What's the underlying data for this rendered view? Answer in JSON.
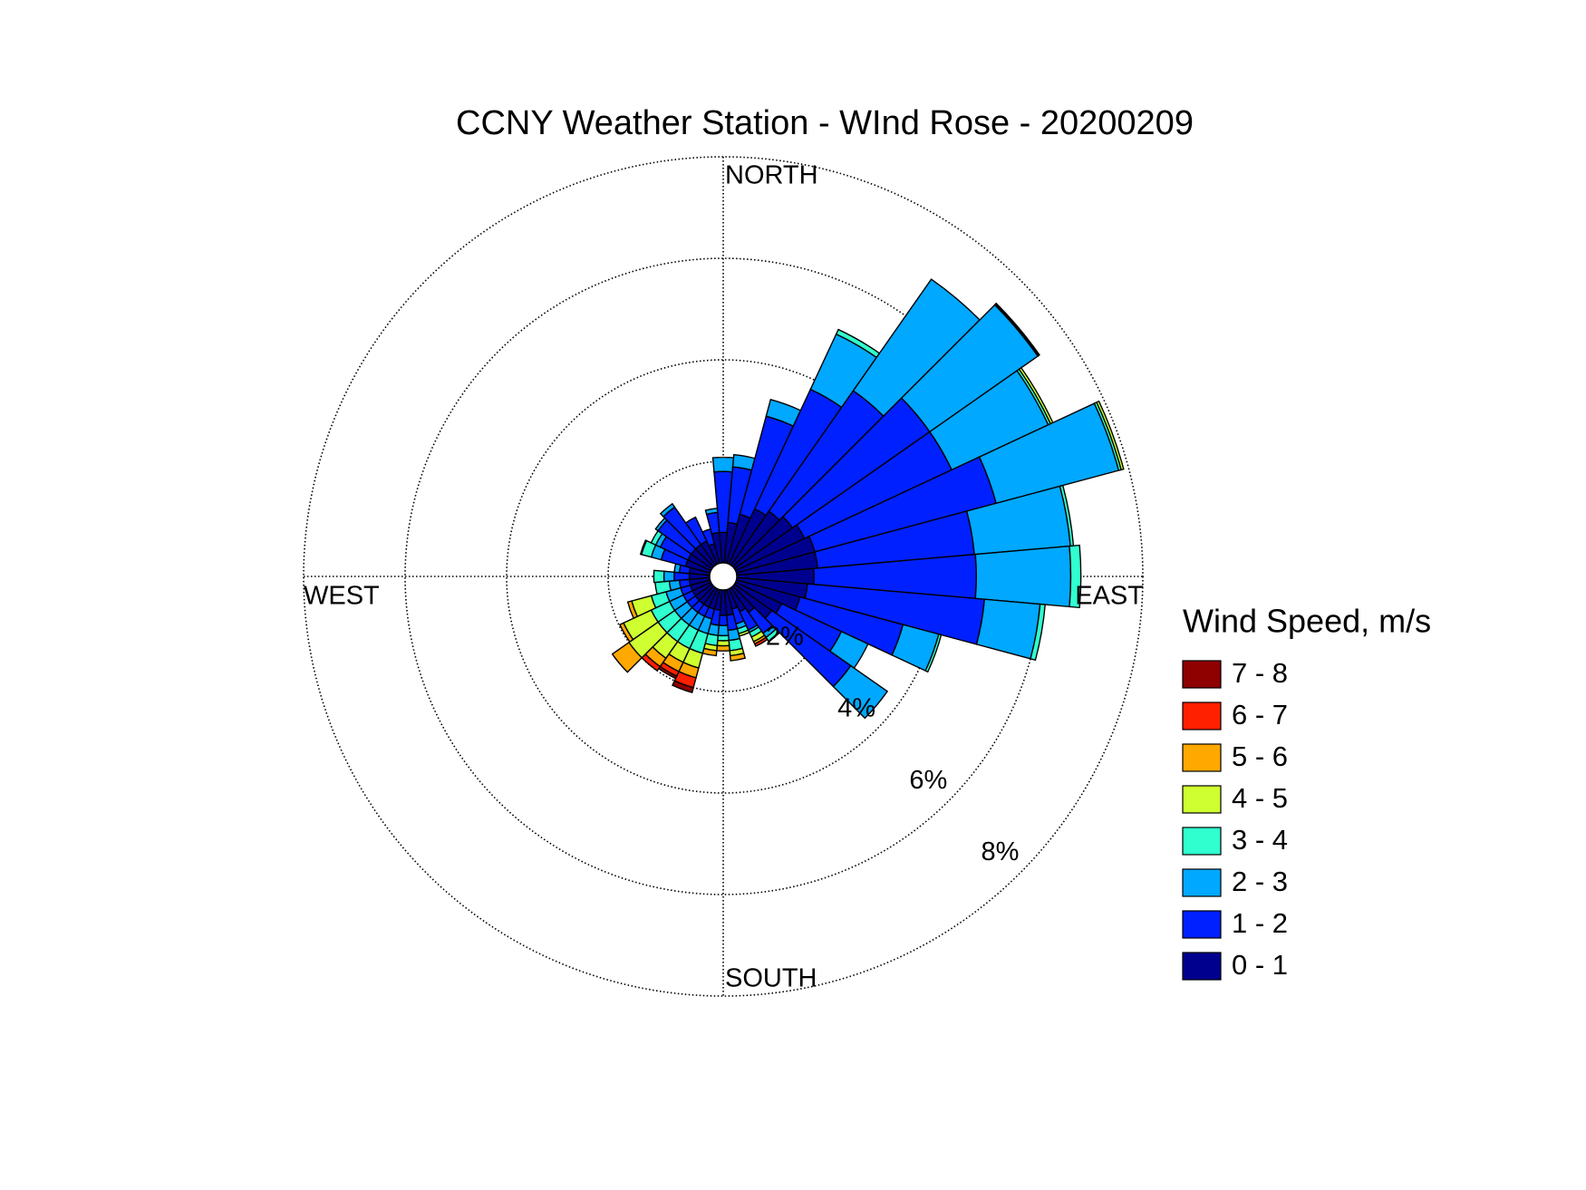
{
  "chart_data": {
    "type": "windrose",
    "title": "CCNY Weather Station - WInd Rose - 20200209",
    "categories": [
      "NORTH",
      null,
      null,
      null,
      null,
      null,
      null,
      null,
      null,
      "EAST",
      null,
      null,
      null,
      null,
      null,
      null,
      null,
      null,
      "SOUTH",
      null,
      null,
      null,
      null,
      null,
      null,
      null,
      null,
      "WEST",
      null,
      null,
      null,
      null,
      null,
      null,
      null,
      null
    ],
    "rlim": [
      0,
      8
    ],
    "rticks": [
      {
        "value": 2,
        "label": "2%"
      },
      {
        "value": 4,
        "label": "4%"
      },
      {
        "value": 6,
        "label": "6%"
      },
      {
        "value": 8,
        "label": "8%"
      }
    ],
    "grid": true,
    "legend_title": "Wind Speed, m/s",
    "legend_position": "right",
    "series": [
      {
        "name": "0 - 1",
        "color": "#00008f",
        "values": [
          0.6,
          0.8,
          1.0,
          1.2,
          1.3,
          1.4,
          1.5,
          1.6,
          1.6,
          1.52,
          1.4,
          1.3,
          1.0,
          0.9,
          0.6,
          0.5,
          0.4,
          0.5,
          0.5,
          0.4,
          0.4,
          0.4,
          0.4,
          0.4,
          0.4,
          0.4,
          0.4,
          0.4,
          0.4,
          0.5,
          0.5,
          0.5,
          0.5,
          0.5,
          0.4,
          0.6
        ]
      },
      {
        "name": "1 - 2",
        "color": "#0020ff",
        "values": [
          1.2,
          1.1,
          2.0,
          2.6,
          2.9,
          3.3,
          3.2,
          3.7,
          3.1,
          3.2,
          3.5,
          2.1,
          1.3,
          1.9,
          0.5,
          0.4,
          0.3,
          0.3,
          0.2,
          0.3,
          0.2,
          0.2,
          0.2,
          0.2,
          0.2,
          0.2,
          0.2,
          0.3,
          0.2,
          0.5,
          0.6,
          0.8,
          0.9,
          0.52,
          0.3,
          0.4
        ]
      },
      {
        "name": "2 - 3",
        "color": "#00a8ff",
        "values": [
          0.28,
          0.24,
          0.34,
          1.2,
          2.68,
          2.6,
          2.1,
          2.5,
          1.9,
          1.86,
          1.1,
          0.73,
          0.58,
          0.88,
          0.1,
          0.05,
          0.1,
          0.2,
          0.2,
          0.2,
          0.3,
          0.3,
          0.3,
          0.3,
          0.3,
          0.3,
          0.2,
          0.2,
          0.1,
          0.2,
          0.1,
          0.06,
          0.08,
          0,
          0,
          0.08
        ]
      },
      {
        "name": "3 - 4",
        "color": "#30ffcf",
        "values": [
          0,
          0,
          0,
          0.1,
          0,
          0.02,
          0.05,
          0.05,
          0.06,
          0.2,
          0.1,
          0.05,
          0,
          0,
          0.1,
          0.1,
          0.1,
          0.2,
          0.1,
          0.2,
          0.4,
          0.4,
          0.4,
          0.4,
          0.4,
          0.3,
          0.28,
          0.2,
          0,
          0.2,
          0.1,
          0,
          0,
          0,
          0,
          0
        ]
      },
      {
        "name": "4 - 5",
        "color": "#cfff30",
        "values": [
          0,
          0,
          0,
          0,
          0,
          0.02,
          0.05,
          0.05,
          0,
          0,
          0,
          0,
          0,
          0,
          0,
          0.1,
          0.05,
          0.1,
          0.1,
          0.1,
          0.3,
          0.3,
          0.4,
          0.7,
          0.6,
          0.4,
          0,
          0,
          0,
          0.02,
          0,
          0,
          0,
          0,
          0,
          0
        ]
      },
      {
        "name": "5 - 6",
        "color": "#ffa800",
        "values": [
          0,
          0,
          0,
          0,
          0,
          0,
          0,
          0,
          0,
          0,
          0,
          0,
          0,
          0,
          0,
          0.05,
          0,
          0.1,
          0.1,
          0.1,
          0.2,
          0.2,
          0.2,
          0.4,
          0.08,
          0.08,
          0,
          0,
          0,
          0,
          0,
          0,
          0,
          0,
          0,
          0
        ]
      },
      {
        "name": "6 - 7",
        "color": "#ff2000",
        "values": [
          0,
          0,
          0,
          0,
          0,
          0,
          0,
          0,
          0,
          0,
          0,
          0,
          0,
          0,
          0,
          0.05,
          0,
          0,
          0,
          0,
          0.2,
          0.1,
          0.1,
          0,
          0,
          0,
          0,
          0,
          0,
          0,
          0,
          0,
          0,
          0,
          0,
          0
        ]
      },
      {
        "name": "7 - 8",
        "color": "#8f0000",
        "values": [
          0,
          0,
          0,
          0,
          0,
          0,
          0,
          0,
          0,
          0,
          0,
          0,
          0,
          0,
          0,
          0,
          0,
          0,
          0,
          0,
          0.1,
          0.05,
          0,
          0,
          0,
          0,
          0,
          0,
          0,
          0,
          0,
          0,
          0,
          0,
          0,
          0
        ]
      }
    ]
  }
}
